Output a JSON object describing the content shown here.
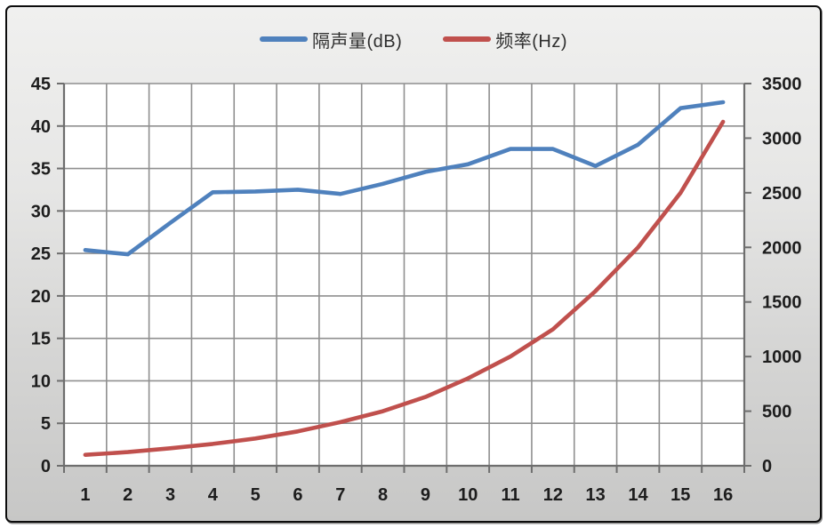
{
  "chart_data": {
    "type": "line",
    "title": "",
    "categories": [
      "1",
      "2",
      "3",
      "4",
      "5",
      "6",
      "7",
      "8",
      "9",
      "10",
      "11",
      "12",
      "13",
      "14",
      "15",
      "16"
    ],
    "series": [
      {
        "name": "隔声量(dB)",
        "color": "#4F81BD",
        "axis": "left",
        "values": [
          25.4,
          24.9,
          28.6,
          32.2,
          32.3,
          32.5,
          32.0,
          33.2,
          34.6,
          35.5,
          37.3,
          37.3,
          35.3,
          37.8,
          42.1,
          42.8
        ]
      },
      {
        "name": "频率(Hz)",
        "color": "#C0504D",
        "axis": "right",
        "values": [
          100,
          125,
          160,
          200,
          250,
          315,
          400,
          500,
          630,
          800,
          1000,
          1250,
          1600,
          2000,
          2500,
          3150
        ]
      }
    ],
    "left_axis": {
      "min": 0,
      "max": 45,
      "step": 5,
      "tick_labels": [
        "45",
        "40",
        "35",
        "30",
        "25",
        "20",
        "15",
        "10",
        "5",
        "0"
      ]
    },
    "right_axis": {
      "min": 0,
      "max": 3500,
      "step": 500,
      "tick_labels": [
        "3500",
        "3000",
        "2500",
        "2000",
        "1500",
        "1000",
        "500",
        "0"
      ]
    },
    "x_axis": {
      "tick_labels": [
        "1",
        "2",
        "3",
        "4",
        "5",
        "6",
        "7",
        "8",
        "9",
        "10",
        "11",
        "12",
        "13",
        "14",
        "15",
        "16"
      ]
    },
    "legend_position": "top-center",
    "grid": "on",
    "styles": {
      "plot_background": "#ffffff",
      "gridline_color": "#8f8f8f",
      "axis_color": "#6e6e6e",
      "label_color": "#1d1d1d"
    }
  }
}
